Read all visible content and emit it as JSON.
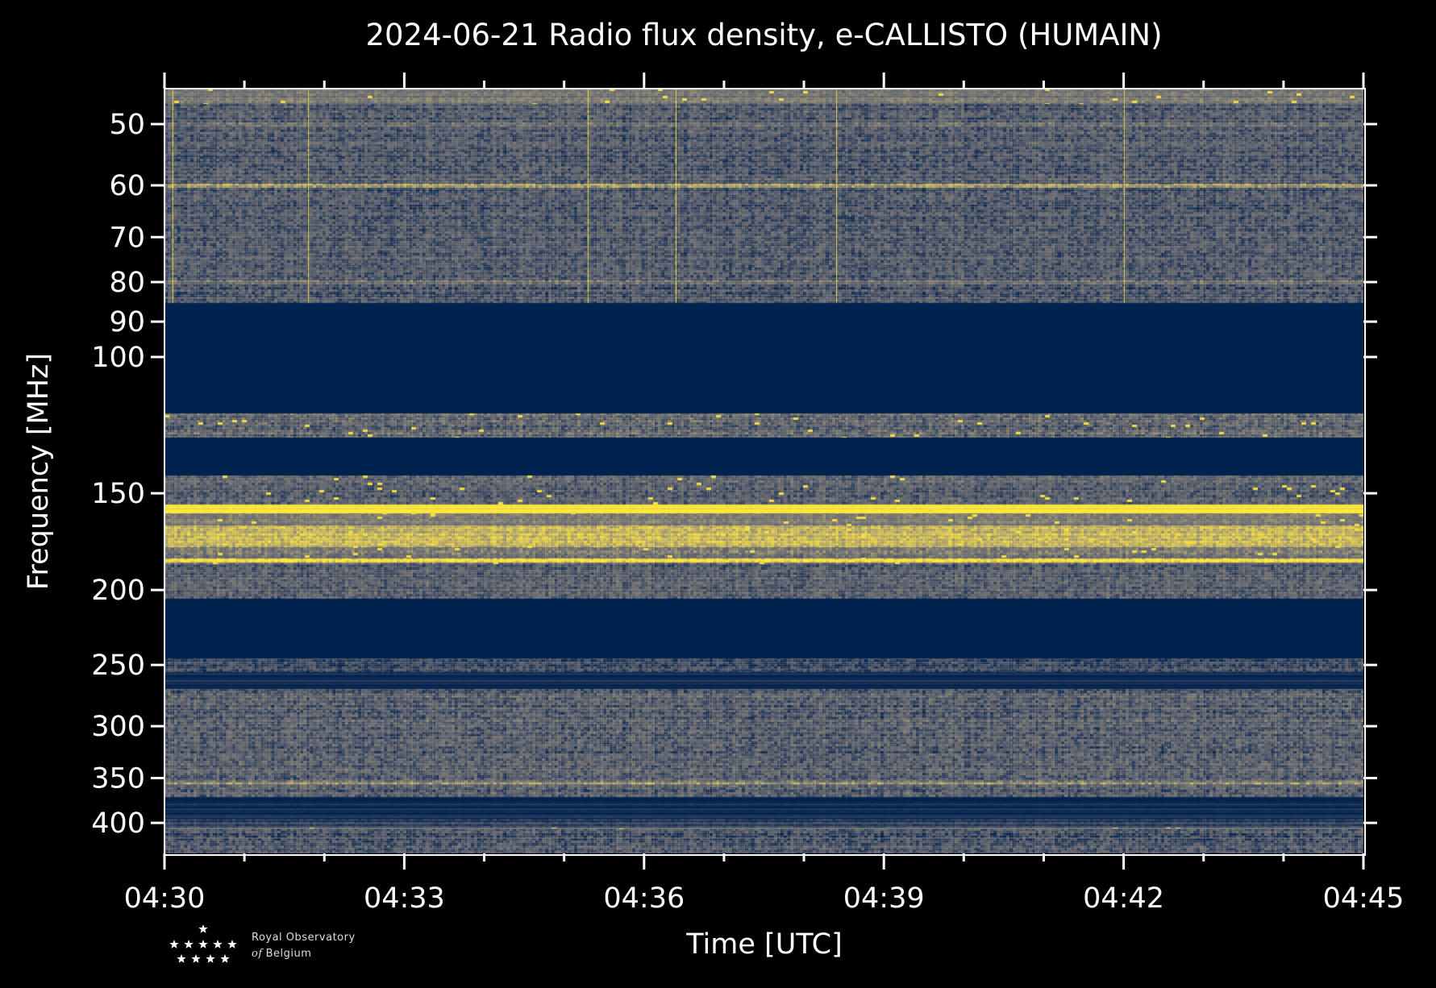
{
  "chart_data": {
    "type": "heatmap",
    "title": "2024-06-21 Radio flux density, e-CALLISTO (HUMAIN)",
    "xlabel": "Time [UTC]",
    "ylabel": "Frequency [MHz]",
    "x_ticks": [
      "04:30",
      "04:33",
      "04:36",
      "04:39",
      "04:42",
      "04:45"
    ],
    "x_range_minutes": [
      0,
      15
    ],
    "x_minor_tick_minutes": 1,
    "y_scale": "log",
    "y_inverted": true,
    "y_ticks": [
      50,
      60,
      70,
      80,
      90,
      100,
      150,
      200,
      250,
      300,
      350,
      400
    ],
    "y_range": [
      45,
      438
    ],
    "colormap": [
      "#00224e",
      "#575d6d",
      "#7c7b78",
      "#c3b369",
      "#fee838"
    ],
    "bands": [
      {
        "from": 45,
        "to": 47,
        "level": 0.45,
        "noise": 0.2
      },
      {
        "from": 47,
        "to": 85,
        "level": 0.27,
        "noise": 0.3
      },
      {
        "from": 85,
        "to": 118,
        "level": 0.0,
        "noise": 0.0
      },
      {
        "from": 118,
        "to": 127,
        "level": 0.35,
        "noise": 0.35
      },
      {
        "from": 127,
        "to": 142,
        "level": 0.0,
        "noise": 0.0
      },
      {
        "from": 142,
        "to": 155,
        "level": 0.32,
        "noise": 0.3
      },
      {
        "from": 155,
        "to": 159,
        "level": 0.97,
        "noise": 0.05
      },
      {
        "from": 159,
        "to": 165,
        "level": 0.5,
        "noise": 0.2
      },
      {
        "from": 165,
        "to": 176,
        "level": 0.78,
        "noise": 0.25
      },
      {
        "from": 176,
        "to": 185,
        "level": 0.45,
        "noise": 0.3
      },
      {
        "from": 185,
        "to": 205,
        "level": 0.3,
        "noise": 0.3
      },
      {
        "from": 205,
        "to": 245,
        "level": 0.0,
        "noise": 0.0
      },
      {
        "from": 245,
        "to": 255,
        "level": 0.2,
        "noise": 0.25
      },
      {
        "from": 255,
        "to": 268,
        "level": 0.03,
        "noise": 0.02
      },
      {
        "from": 268,
        "to": 370,
        "level": 0.3,
        "noise": 0.32
      },
      {
        "from": 370,
        "to": 395,
        "level": 0.03,
        "noise": 0.03
      },
      {
        "from": 395,
        "to": 405,
        "level": 0.12,
        "noise": 0.1
      },
      {
        "from": 405,
        "to": 407,
        "level": 0.45,
        "noise": 0.1
      },
      {
        "from": 407,
        "to": 438,
        "level": 0.25,
        "noise": 0.3
      }
    ],
    "lines": [
      {
        "freq": 50,
        "level": 0.45
      },
      {
        "freq": 60,
        "level": 0.6
      },
      {
        "freq": 80,
        "level": 0.5
      },
      {
        "freq": 183,
        "level": 0.95
      },
      {
        "freq": 355,
        "level": 0.55
      }
    ],
    "bursts_minutes": [
      0.1,
      1.8,
      5.3,
      6.4,
      8.4,
      12.0
    ]
  },
  "logo": {
    "line1": "Royal Observatory",
    "line2_italic": "of",
    "line2": "Belgium"
  }
}
